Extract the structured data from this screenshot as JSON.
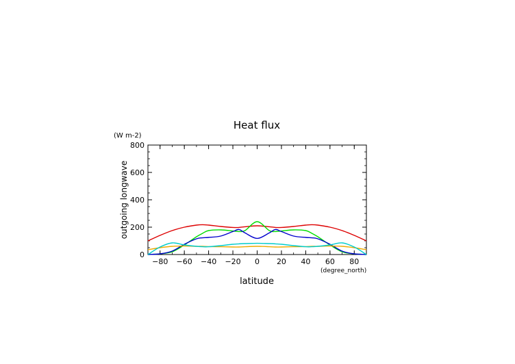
{
  "chart_data": {
    "type": "line",
    "title": "Heat flux",
    "xlabel": "latitude",
    "ylabel": "outgoing longwave",
    "x_unit": "(degree_north)",
    "y_unit": "(W m-2)",
    "xlim": [
      -90,
      90
    ],
    "ylim": [
      0,
      800
    ],
    "xticks": [
      -80,
      -60,
      -40,
      -20,
      0,
      20,
      40,
      60,
      80
    ],
    "yticks": [
      0,
      200,
      400,
      600,
      800
    ],
    "x": [
      -90,
      -80,
      -70,
      -60,
      -50,
      -45,
      -40,
      -30,
      -20,
      -15,
      -10,
      0,
      10,
      15,
      20,
      30,
      40,
      45,
      50,
      60,
      70,
      80,
      90
    ],
    "series": [
      {
        "color": "#dd0000",
        "values": [
          100,
          140,
          175,
          200,
          215,
          218,
          215,
          205,
          198,
          198,
          203,
          210,
          203,
          198,
          198,
          205,
          215,
          218,
          215,
          200,
          175,
          140,
          100
        ]
      },
      {
        "color": "#00dd00",
        "values": [
          0,
          5,
          20,
          70,
          130,
          155,
          175,
          180,
          172,
          168,
          175,
          240,
          175,
          168,
          172,
          180,
          175,
          155,
          130,
          70,
          20,
          5,
          0
        ]
      },
      {
        "color": "#0000cc",
        "values": [
          0,
          5,
          25,
          75,
          115,
          122,
          125,
          135,
          168,
          183,
          158,
          118,
          158,
          183,
          168,
          135,
          125,
          122,
          115,
          75,
          25,
          5,
          0
        ]
      },
      {
        "color": "#eeaa00",
        "values": [
          35,
          50,
          60,
          62,
          60,
          60,
          58,
          57,
          55,
          55,
          57,
          60,
          57,
          55,
          55,
          57,
          58,
          60,
          60,
          62,
          60,
          50,
          35
        ]
      },
      {
        "color": "#00cccc",
        "values": [
          0,
          55,
          85,
          70,
          60,
          57,
          57,
          65,
          75,
          78,
          80,
          82,
          80,
          78,
          75,
          65,
          57,
          57,
          60,
          70,
          85,
          55,
          0
        ]
      }
    ]
  }
}
